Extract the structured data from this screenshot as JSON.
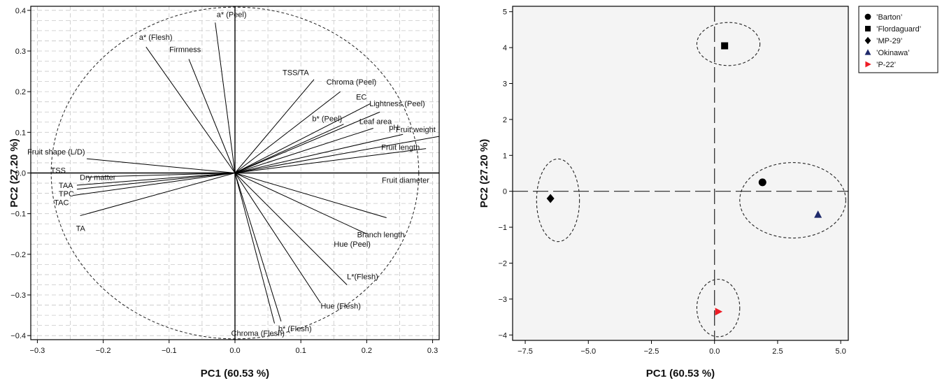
{
  "chart_data": [
    {
      "type": "scatter",
      "subtype": "pca-loading-biplot",
      "xlabel": "PC1 (60.53 %)",
      "ylabel": "PC2 (27.20 %)",
      "xlim": [
        -0.31,
        0.31
      ],
      "ylim": [
        -0.41,
        0.41
      ],
      "xticks": [
        -0.3,
        -0.2,
        -0.1,
        0.0,
        0.1,
        0.2,
        0.3
      ],
      "xtick_labels": [
        "−0.3",
        "−0.2",
        "−0.1",
        "0.0",
        "0.1",
        "0.2",
        "0.3"
      ],
      "yticks": [
        0.4,
        0.3,
        0.2,
        0.1,
        0.0,
        -0.1,
        -0.2,
        -0.3,
        -0.4
      ],
      "ytick_labels": [
        "0.4",
        "0.3",
        "0.2",
        "0.1",
        "0.0",
        "−0.1",
        "−0.2",
        "−0.3",
        "−0.4"
      ],
      "grid": "dashed",
      "reference_lines": "x=0, y=0",
      "circle": "dashed unit circle",
      "loadings": [
        {
          "label": "a* (Peel)",
          "x": -0.03,
          "y": 0.37
        },
        {
          "label": "Firmness",
          "x": -0.07,
          "y": 0.28
        },
        {
          "label": "a* (Flesh)",
          "x": -0.135,
          "y": 0.31
        },
        {
          "label": "TSS/TA",
          "x": 0.12,
          "y": 0.23
        },
        {
          "label": "Chroma (Peel)",
          "x": 0.16,
          "y": 0.2
        },
        {
          "label": "EC",
          "x": 0.205,
          "y": 0.17
        },
        {
          "label": "Lightness (Peel)",
          "x": 0.22,
          "y": 0.15
        },
        {
          "label": "b* (Peel)",
          "x": 0.165,
          "y": 0.12
        },
        {
          "label": "Leaf area",
          "x": 0.21,
          "y": 0.11
        },
        {
          "label": "pH",
          "x": 0.255,
          "y": 0.095
        },
        {
          "label": "Fruit weight",
          "x": 0.31,
          "y": 0.09
        },
        {
          "label": "Fruit length",
          "x": 0.29,
          "y": 0.06
        },
        {
          "label": "Fruit diameter",
          "x": 0.31,
          "y": 0.0
        },
        {
          "label": "Fruit shape (L/D)",
          "x": -0.225,
          "y": 0.035
        },
        {
          "label": "TSS",
          "x": -0.25,
          "y": 0.0
        },
        {
          "label": "Dry matter",
          "x": -0.225,
          "y": -0.01
        },
        {
          "label": "TAA",
          "x": -0.24,
          "y": -0.03
        },
        {
          "label": "TPC",
          "x": -0.24,
          "y": -0.04
        },
        {
          "label": "TAC",
          "x": -0.245,
          "y": -0.055
        },
        {
          "label": "TA",
          "x": -0.235,
          "y": -0.105
        },
        {
          "label": "Branch length",
          "x": 0.23,
          "y": -0.11
        },
        {
          "label": "Hue (Peel)",
          "x": 0.2,
          "y": -0.15
        },
        {
          "label": "L*(Flesh)",
          "x": 0.17,
          "y": -0.275
        },
        {
          "label": "Hue (Flesh)",
          "x": 0.13,
          "y": -0.32
        },
        {
          "label": "Chroma (Flesh)",
          "x": 0.06,
          "y": -0.37
        },
        {
          "label": "b* (Flesh)",
          "x": 0.07,
          "y": -0.365
        }
      ]
    },
    {
      "type": "scatter",
      "subtype": "pca-score-plot",
      "xlabel": "PC1 (60.53 %)",
      "ylabel": "PC2 (27.20 %)",
      "xlim": [
        -8.0,
        5.3
      ],
      "ylim": [
        -4.15,
        5.15
      ],
      "xticks": [
        -7.5,
        -5.0,
        -2.5,
        0.0,
        2.5,
        5.0
      ],
      "xtick_labels": [
        "−7.5",
        "−5.0",
        "−2.5",
        "0.0",
        "2.5",
        "5.0"
      ],
      "yticks": [
        5,
        4,
        3,
        2,
        1,
        0,
        -1,
        -2,
        -3,
        -4
      ],
      "ytick_labels": [
        "5",
        "4",
        "3",
        "2",
        "1",
        "0",
        "−1",
        "−2",
        "−3",
        "−4"
      ],
      "reference_lines": "x=0, y=0",
      "background": "#f4f4f4",
      "legend_position": "right-outside-top",
      "series": [
        {
          "name": "’Barton’",
          "marker": "circle",
          "color": "#000000",
          "points": [
            [
              1.9,
              0.25
            ]
          ]
        },
        {
          "name": "’Flordaguard’",
          "marker": "square",
          "color": "#000000",
          "points": [
            [
              0.4,
              4.05
            ]
          ]
        },
        {
          "name": "’MP-29’",
          "marker": "diamond",
          "color": "#000000",
          "points": [
            [
              -6.5,
              -0.2
            ]
          ]
        },
        {
          "name": "’Okinawa’",
          "marker": "triangle-up",
          "color": "#1f2a6b",
          "points": [
            [
              4.1,
              -0.65
            ]
          ]
        },
        {
          "name": "’P-22’",
          "marker": "triangle-right",
          "color": "#ee1c25",
          "points": [
            [
              0.15,
              -3.35
            ]
          ]
        }
      ],
      "clusters": [
        {
          "cx": 0.55,
          "cy": 4.1,
          "rx": 1.25,
          "ry": 0.6
        },
        {
          "cx": -6.2,
          "cy": -0.25,
          "rx": 0.85,
          "ry": 1.15
        },
        {
          "cx": 3.1,
          "cy": -0.25,
          "rx": 2.1,
          "ry": 1.05
        },
        {
          "cx": 0.15,
          "cy": -3.25,
          "rx": 0.85,
          "ry": 0.8
        }
      ]
    }
  ]
}
